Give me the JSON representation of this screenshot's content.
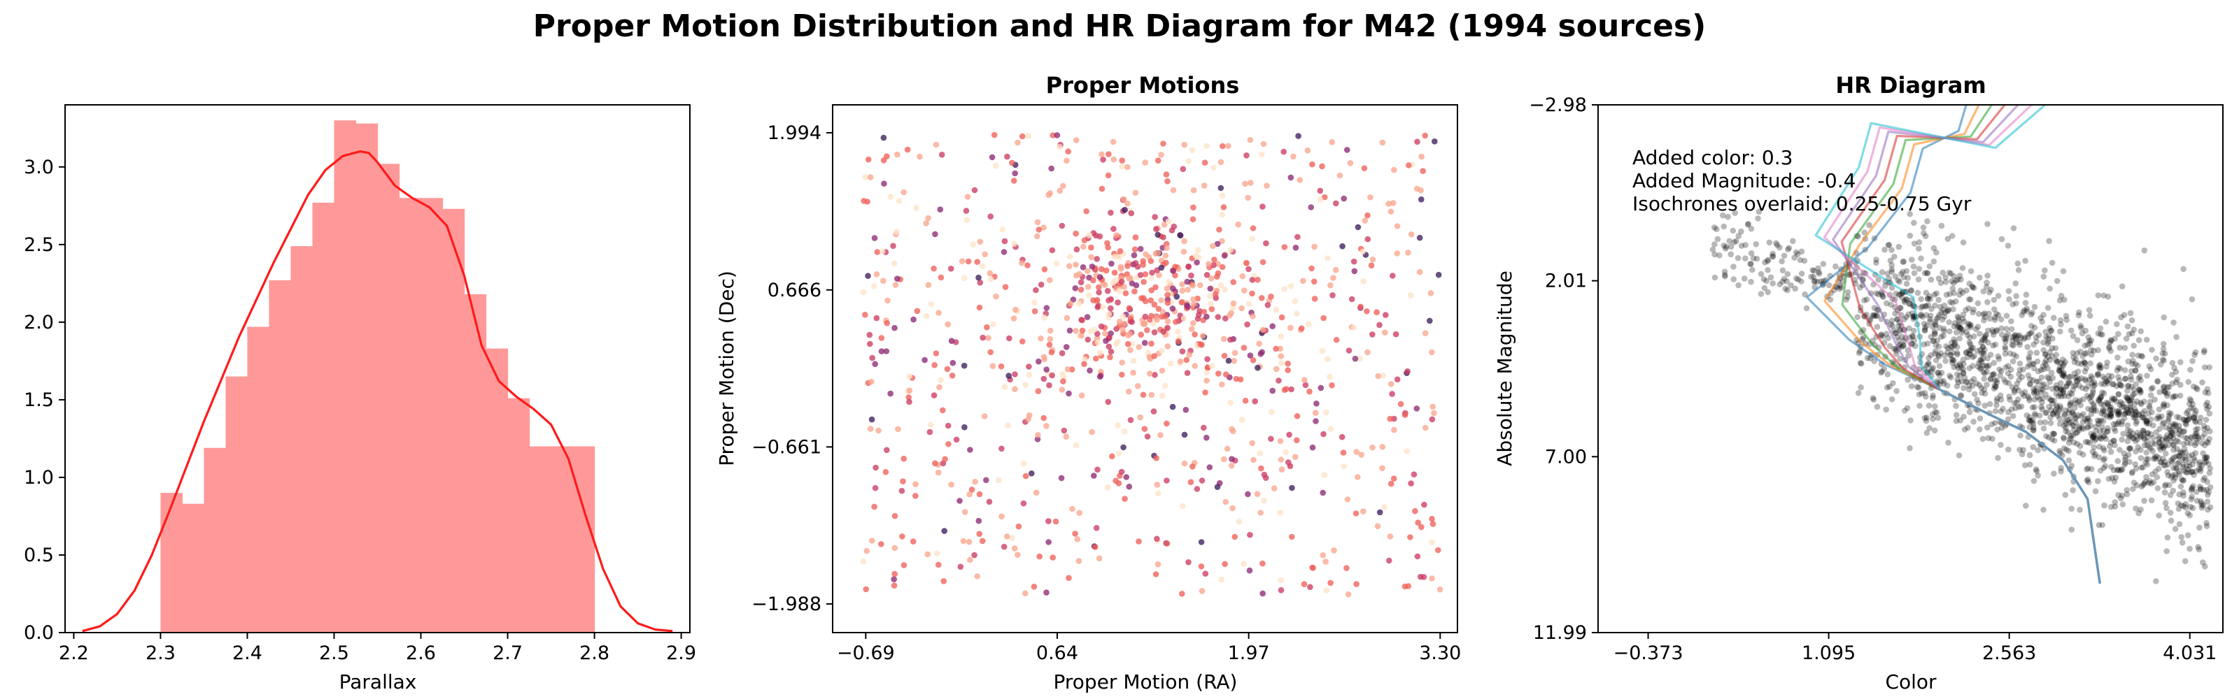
{
  "figure": {
    "title": "Proper Motion Distribution and HR Diagram for M42 (1994 sources)"
  },
  "chart_data": [
    {
      "type": "bar",
      "title": "",
      "xlabel": "Parallax",
      "ylabel": "",
      "xlim": [
        2.19,
        2.91
      ],
      "ylim": [
        0,
        3.4
      ],
      "xticks": [
        "2.2",
        "2.3",
        "2.4",
        "2.5",
        "2.6",
        "2.7",
        "2.8",
        "2.9"
      ],
      "yticks": [
        "0.0",
        "0.5",
        "1.0",
        "1.5",
        "2.0",
        "2.5",
        "3.0"
      ],
      "bin_edges": [
        2.3,
        2.325,
        2.35,
        2.375,
        2.4,
        2.425,
        2.45,
        2.475,
        2.5,
        2.525,
        2.55,
        2.575,
        2.6,
        2.625,
        2.65,
        2.675,
        2.7,
        2.725,
        2.75,
        2.775,
        2.8
      ],
      "values": [
        0.9,
        0.83,
        1.19,
        1.65,
        1.97,
        2.27,
        2.49,
        2.77,
        3.3,
        3.28,
        3.02,
        2.8,
        2.8,
        2.73,
        2.18,
        1.83,
        1.51,
        1.2,
        1.2,
        1.2
      ],
      "bar_color": "#ff9999",
      "kde": {
        "color": "#ff1a1a",
        "x": [
          2.21,
          2.23,
          2.25,
          2.27,
          2.29,
          2.31,
          2.33,
          2.35,
          2.37,
          2.39,
          2.41,
          2.43,
          2.45,
          2.47,
          2.49,
          2.51,
          2.53,
          2.54,
          2.55,
          2.57,
          2.59,
          2.61,
          2.63,
          2.65,
          2.67,
          2.69,
          2.71,
          2.73,
          2.75,
          2.77,
          2.79,
          2.81,
          2.83,
          2.85,
          2.87,
          2.89
        ],
        "y": [
          0.01,
          0.04,
          0.12,
          0.27,
          0.5,
          0.78,
          1.07,
          1.36,
          1.63,
          1.9,
          2.14,
          2.38,
          2.6,
          2.82,
          2.98,
          3.07,
          3.1,
          3.09,
          3.03,
          2.88,
          2.8,
          2.74,
          2.62,
          2.3,
          1.85,
          1.62,
          1.52,
          1.44,
          1.34,
          1.12,
          0.75,
          0.41,
          0.17,
          0.06,
          0.02,
          0.01
        ]
      }
    },
    {
      "type": "scatter",
      "title": "Proper Motions",
      "xlabel": "Proper Motion (RA)",
      "ylabel": "Proper Motion (Dec)",
      "xlim": [
        -0.92,
        3.42
      ],
      "ylim": [
        -2.23,
        2.23
      ],
      "xticks": [
        "−0.69",
        "0.64",
        "1.97",
        "3.30"
      ],
      "yticks": [
        "−1.988",
        "−0.661",
        "0.666",
        "1.994"
      ],
      "n_points": 1100,
      "cluster_center": [
        1.28,
        0.56
      ],
      "colormap": [
        "#fde4c8",
        "#f8a68e",
        "#f0605a",
        "#cc3c63",
        "#8d2a74",
        "#3d1f5c"
      ]
    },
    {
      "type": "scatter",
      "title": "HR Diagram",
      "xlabel": "Color",
      "ylabel": "Absolute Magnitude",
      "xlim": [
        -0.78,
        4.3
      ],
      "ylim": [
        11.99,
        -2.98
      ],
      "y_inverted": true,
      "xticks": [
        "−0.373",
        "1.095",
        "2.563",
        "4.031"
      ],
      "yticks": [
        "−2.98",
        "2.01",
        "7.00",
        "11.99"
      ],
      "n_points": 1994,
      "point_color": "#000000",
      "annotations": [
        "Added color: 0.3",
        "Added Magnitude: -0.4",
        "Isochrones overlaid: 0.25-0.75 Gyr"
      ],
      "isochrones": {
        "age_range_gyr": [
          0.25,
          0.75
        ],
        "count": 7,
        "colors": [
          "#1f77b4",
          "#ff7f0e",
          "#2ca02c",
          "#d62728",
          "#9467bd",
          "#e377c2",
          "#17becf"
        ],
        "shared_track": {
          "x": [
            3.3,
            3.2,
            3.0,
            2.7,
            2.4,
            2.0,
            1.7,
            1.55,
            1.35
          ],
          "y": [
            10.6,
            8.2,
            7.1,
            6.3,
            5.8,
            5.1,
            4.5,
            3.9,
            2.8
          ]
        }
      }
    }
  ]
}
